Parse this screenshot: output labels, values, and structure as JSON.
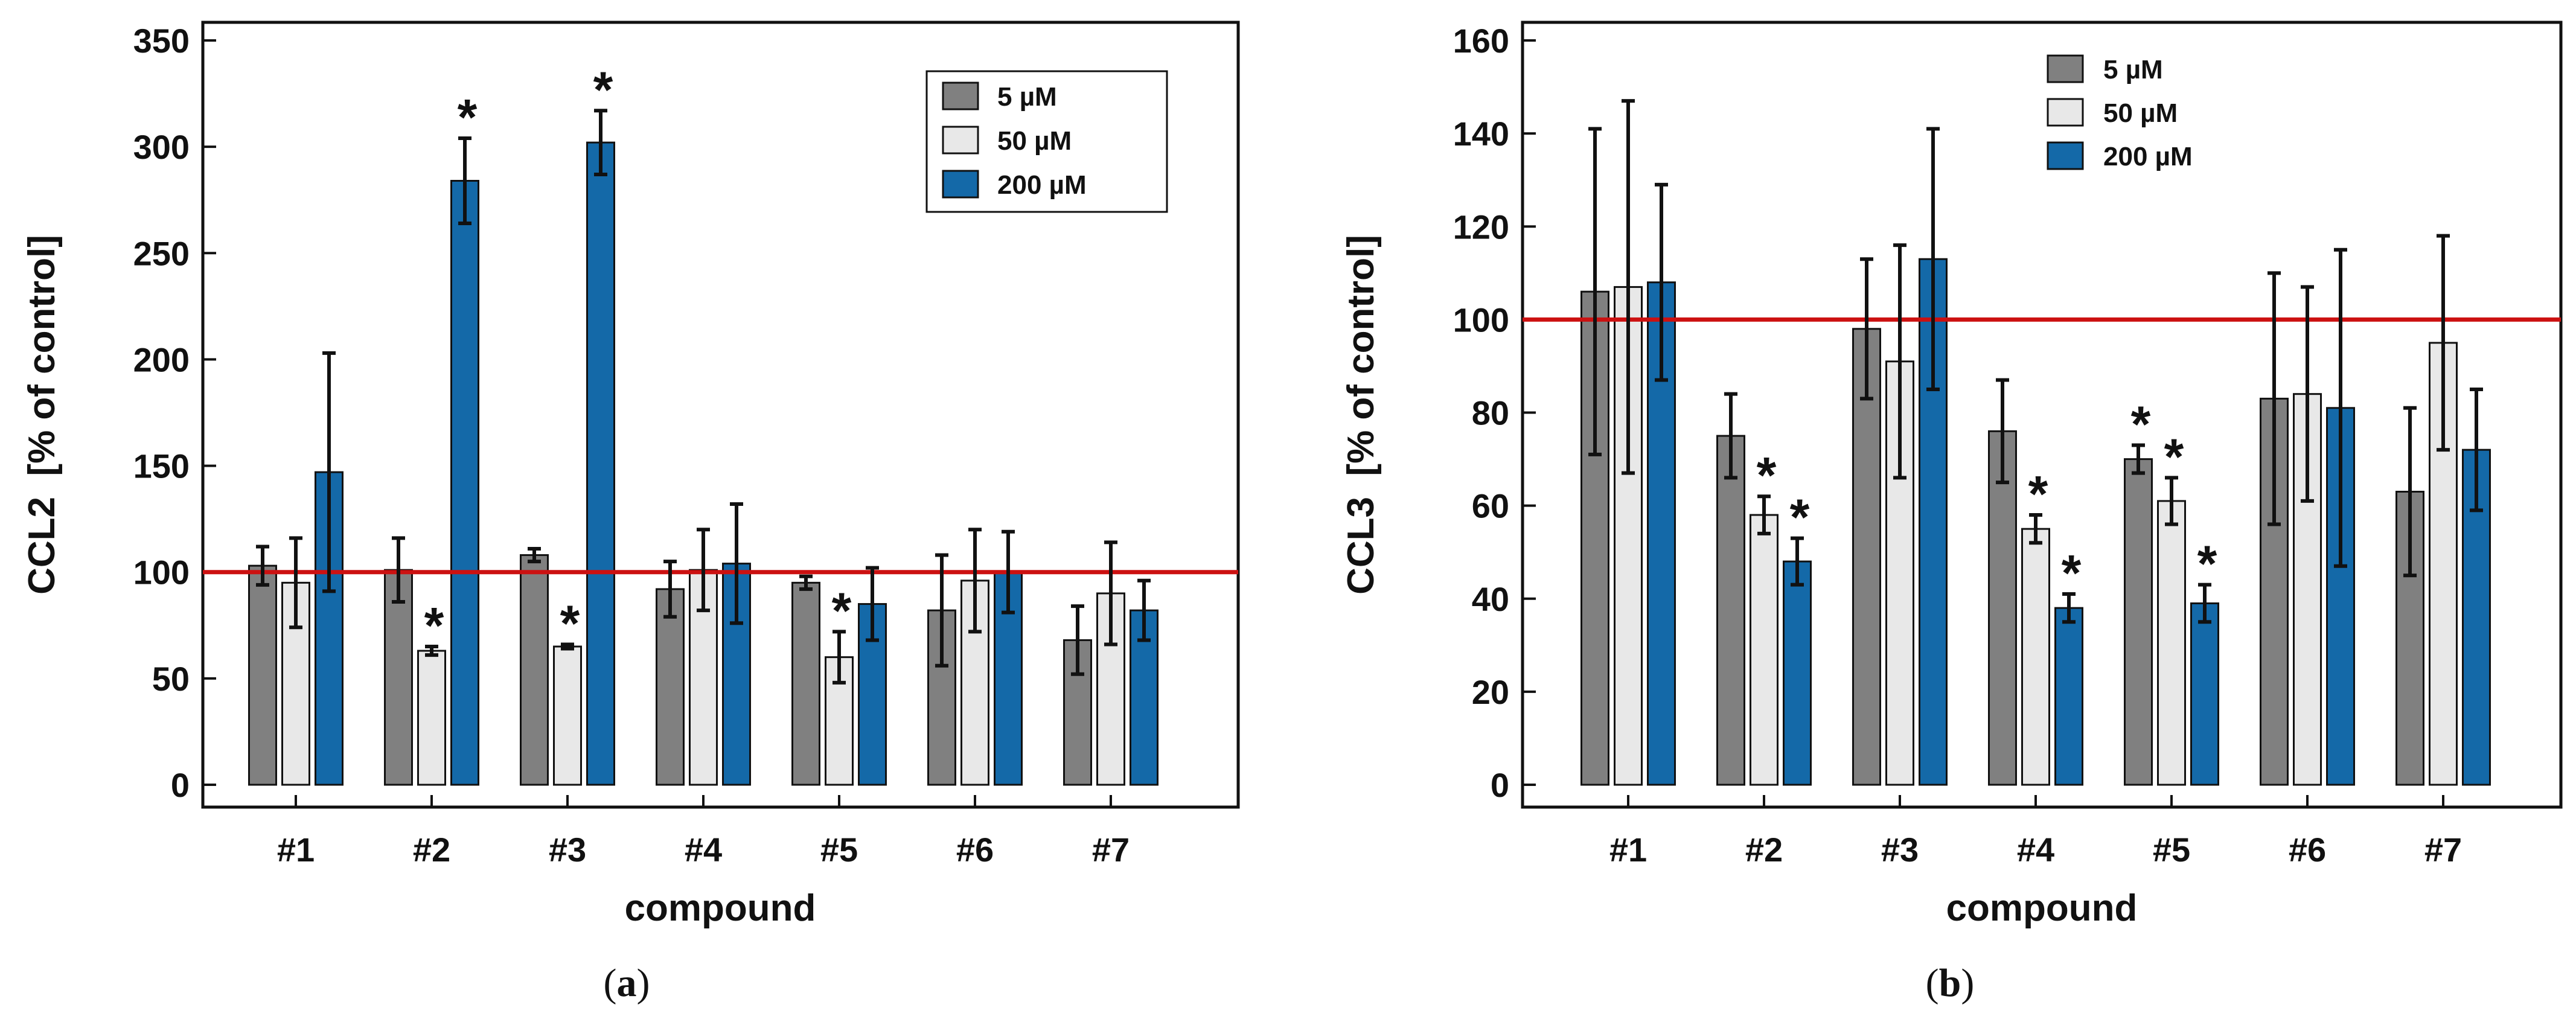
{
  "chart_data": [
    {
      "type": "bar",
      "panel_label": {
        "open": "(",
        "letter": "a",
        "close": ")"
      },
      "xlabel": "compound",
      "ylabel": "CCL2  [% of control]",
      "ylim": [
        0,
        350
      ],
      "yticks": [
        0,
        50,
        100,
        150,
        200,
        250,
        300,
        350
      ],
      "categories": [
        "#1",
        "#2",
        "#3",
        "#4",
        "#5",
        "#6",
        "#7"
      ],
      "reference_line": {
        "value": 100,
        "color": "#cc1111"
      },
      "legend": {
        "position": "top-right"
      },
      "series": [
        {
          "name": "5 µM",
          "color": "#808080",
          "values": [
            103,
            101,
            108,
            92,
            95,
            82,
            68
          ],
          "errors": [
            9,
            15,
            3,
            13,
            3,
            26,
            16
          ],
          "significant": [
            false,
            false,
            false,
            false,
            false,
            false,
            false
          ]
        },
        {
          "name": "50 µM",
          "color": "#e8e8e8",
          "values": [
            95,
            63,
            65,
            101,
            60,
            96,
            90
          ],
          "errors": [
            21,
            2,
            1,
            19,
            12,
            24,
            24
          ],
          "significant": [
            false,
            true,
            true,
            false,
            true,
            false,
            false
          ]
        },
        {
          "name": "200 µM",
          "color": "#1469a8",
          "values": [
            147,
            284,
            302,
            104,
            85,
            100,
            82
          ],
          "errors": [
            56,
            20,
            15,
            28,
            17,
            19,
            14
          ],
          "significant": [
            false,
            true,
            true,
            false,
            false,
            false,
            false
          ]
        }
      ]
    },
    {
      "type": "bar",
      "panel_label": {
        "open": "(",
        "letter": "b",
        "close": ")"
      },
      "xlabel": "compound",
      "ylabel": "CCL3  [% of control]",
      "ylim": [
        0,
        160
      ],
      "yticks": [
        0,
        20,
        40,
        60,
        80,
        100,
        120,
        140,
        160
      ],
      "categories": [
        "#1",
        "#2",
        "#3",
        "#4",
        "#5",
        "#6",
        "#7"
      ],
      "reference_line": {
        "value": 100,
        "color": "#cc1111"
      },
      "legend": {
        "position": "top-right"
      },
      "series": [
        {
          "name": "5 µM",
          "color": "#808080",
          "values": [
            106,
            75,
            98,
            76,
            70,
            83,
            63
          ],
          "errors": [
            35,
            9,
            15,
            11,
            3,
            27,
            18
          ],
          "significant": [
            false,
            false,
            false,
            false,
            true,
            false,
            false
          ]
        },
        {
          "name": "50 µM",
          "color": "#e8e8e8",
          "values": [
            107,
            58,
            91,
            55,
            61,
            84,
            95
          ],
          "errors": [
            40,
            4,
            25,
            3,
            5,
            23,
            23
          ],
          "significant": [
            false,
            true,
            false,
            true,
            true,
            false,
            false
          ]
        },
        {
          "name": "200 µM",
          "color": "#1469a8",
          "values": [
            108,
            48,
            113,
            38,
            39,
            81,
            72
          ],
          "errors": [
            21,
            5,
            28,
            3,
            4,
            34,
            13
          ],
          "significant": [
            false,
            true,
            false,
            true,
            true,
            false,
            false
          ]
        }
      ]
    }
  ]
}
